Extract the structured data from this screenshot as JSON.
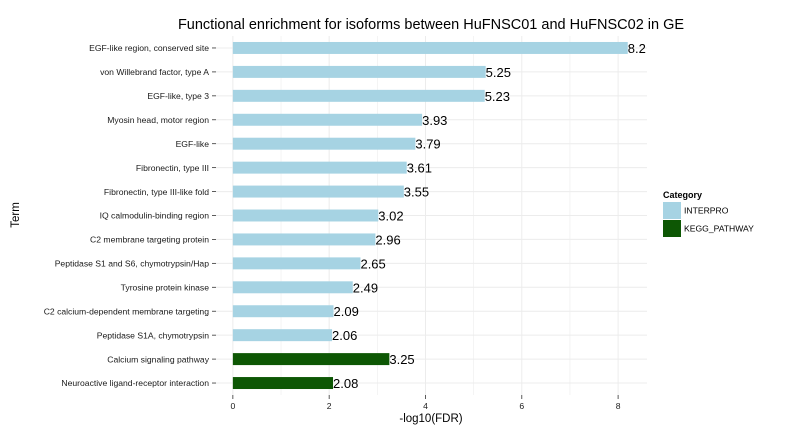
{
  "chart_data": {
    "type": "bar",
    "orientation": "horizontal",
    "title": "Functional enrichment for isoforms between HuFNSC01 and HuFNSC02 in GE",
    "xlabel": "-log10(FDR)",
    "ylabel": "Term",
    "xlim": [
      -0.35,
      8.6
    ],
    "xticks": [
      0,
      2,
      4,
      6,
      8
    ],
    "grid": true,
    "legend": {
      "title": "Category",
      "placement": "right",
      "entries": [
        {
          "name": "INTERPRO",
          "color": "#a6d3e3"
        },
        {
          "name": "KEGG_PATHWAY",
          "color": "#0d5704"
        }
      ]
    },
    "categories": [
      "EGF-like region, conserved site",
      "von Willebrand factor, type A",
      "EGF-like, type 3",
      "Myosin head, motor region",
      "EGF-like",
      "Fibronectin, type III",
      "Fibronectin, type III-like fold",
      "IQ calmodulin-binding region",
      "C2 membrane targeting protein",
      "Peptidase S1 and S6, chymotrypsin/Hap",
      "Tyrosine protein kinase",
      "C2 calcium-dependent membrane targeting",
      "Peptidase S1A, chymotrypsin",
      "Calcium signaling pathway",
      "Neuroactive ligand-receptor interaction"
    ],
    "values": [
      8.2,
      5.25,
      5.23,
      3.93,
      3.79,
      3.61,
      3.55,
      3.02,
      2.96,
      2.65,
      2.49,
      2.09,
      2.06,
      3.25,
      2.08
    ],
    "labels": [
      "8.2",
      "5.25",
      "5.23",
      "3.93",
      "3.79",
      "3.61",
      "3.55",
      "3.02",
      "2.96",
      "2.65",
      "2.49",
      "2.09",
      "2.06",
      "3.25",
      "2.08"
    ],
    "bar_category": [
      "INTERPRO",
      "INTERPRO",
      "INTERPRO",
      "INTERPRO",
      "INTERPRO",
      "INTERPRO",
      "INTERPRO",
      "INTERPRO",
      "INTERPRO",
      "INTERPRO",
      "INTERPRO",
      "INTERPRO",
      "INTERPRO",
      "KEGG_PATHWAY",
      "KEGG_PATHWAY"
    ]
  }
}
